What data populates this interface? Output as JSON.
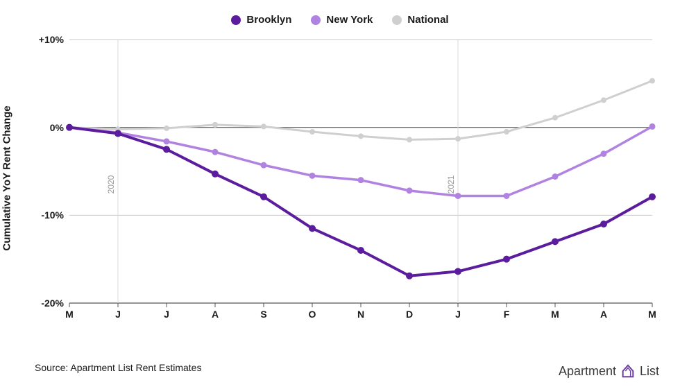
{
  "chart": {
    "type": "line",
    "background_color": "#ffffff",
    "grid_color": "#c8c8c8",
    "axis_color": "#555555",
    "year_marker_color": "#d8d8d8",
    "year_label_color": "#9a9a9a",
    "ylabel": "Cumulative YoY Rent Change",
    "xlabels": [
      "M",
      "J",
      "J",
      "A",
      "S",
      "O",
      "N",
      "D",
      "J",
      "F",
      "M",
      "A",
      "M"
    ],
    "ylim": [
      -20,
      10
    ],
    "yticks": [
      -20,
      -10,
      0,
      10
    ],
    "ytick_labels": [
      "-20%",
      "-10%",
      "0%",
      "+10%"
    ],
    "year_markers": [
      {
        "x_index": 1,
        "label": "2020"
      },
      {
        "x_index": 8,
        "label": "2021"
      }
    ],
    "series": [
      {
        "name": "Brooklyn",
        "color": "#5b1c9e",
        "line_width": 4,
        "marker_radius": 5,
        "values": [
          0.0,
          -0.7,
          -2.5,
          -5.3,
          -7.9,
          -11.5,
          -14.0,
          -16.9,
          -16.4,
          -15.0,
          -13.0,
          -11.0,
          -7.9
        ]
      },
      {
        "name": "New York",
        "color": "#b183e0",
        "line_width": 3.5,
        "marker_radius": 4.5,
        "values": [
          0.0,
          -0.6,
          -1.6,
          -2.8,
          -4.3,
          -5.5,
          -6.0,
          -7.2,
          -7.8,
          -7.8,
          -5.6,
          -3.0,
          0.1
        ]
      },
      {
        "name": "National",
        "color": "#cfcfcf",
        "line_width": 3,
        "marker_radius": 4,
        "values": [
          0.0,
          -0.2,
          -0.1,
          0.3,
          0.1,
          -0.5,
          -1.0,
          -1.4,
          -1.3,
          -0.5,
          1.1,
          3.1,
          5.3
        ]
      }
    ],
    "source_text": "Source: Apartment List Rent Estimates",
    "brand_text": "Apartment",
    "brand_text2": "List",
    "brand_icon_color": "#6b3fa0"
  }
}
